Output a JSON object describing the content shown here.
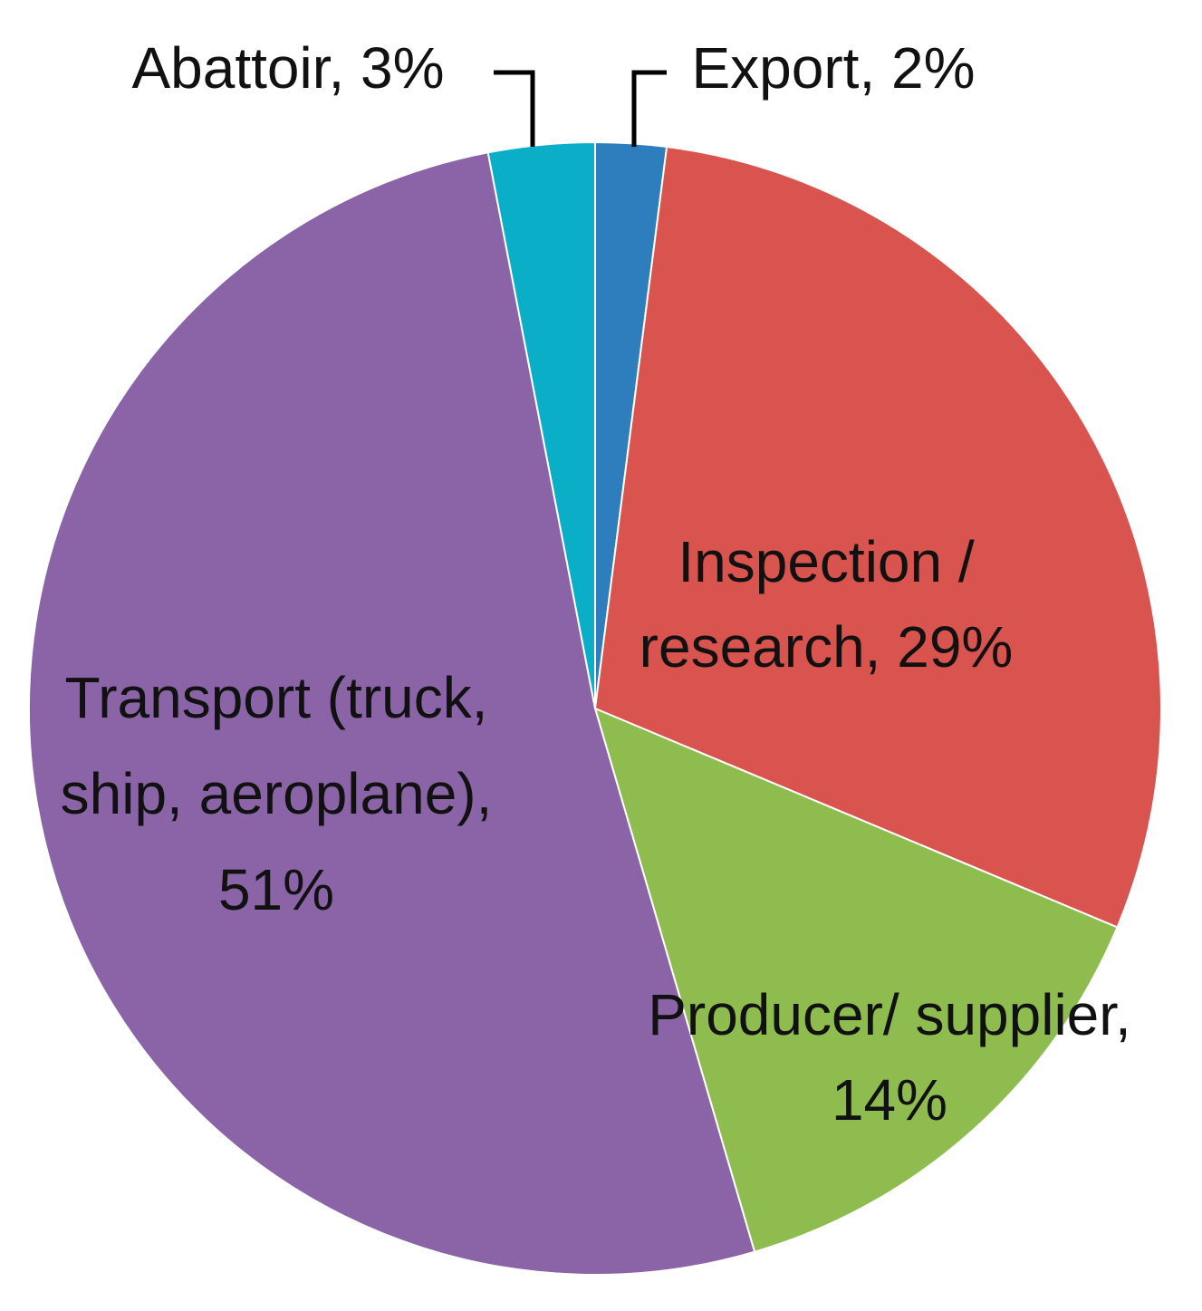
{
  "chart_data": {
    "type": "pie",
    "title": "",
    "start_angle_deg": 0,
    "direction": "clockwise",
    "slices": [
      {
        "name": "Export",
        "value": 2,
        "color": "#2e7ebd",
        "label_lines": [
          "Export, 2%"
        ]
      },
      {
        "name": "Inspection / research",
        "value": 29,
        "color": "#d9534f",
        "label_lines": [
          "Inspection /",
          "research, 29%"
        ]
      },
      {
        "name": "Producer/ supplier",
        "value": 14,
        "color": "#8fbc4f",
        "label_lines": [
          "Producer/ supplier,",
          "14%"
        ]
      },
      {
        "name": "Transport (truck, ship, aeroplane)",
        "value": 51,
        "color": "#8a64a6",
        "label_lines": [
          "Transport (truck,",
          "ship, aeroplane),",
          "51%"
        ]
      },
      {
        "name": "Abattoir",
        "value": 3,
        "color": "#0aaec7",
        "label_lines": [
          "Abattoir, 3%"
        ]
      }
    ]
  }
}
